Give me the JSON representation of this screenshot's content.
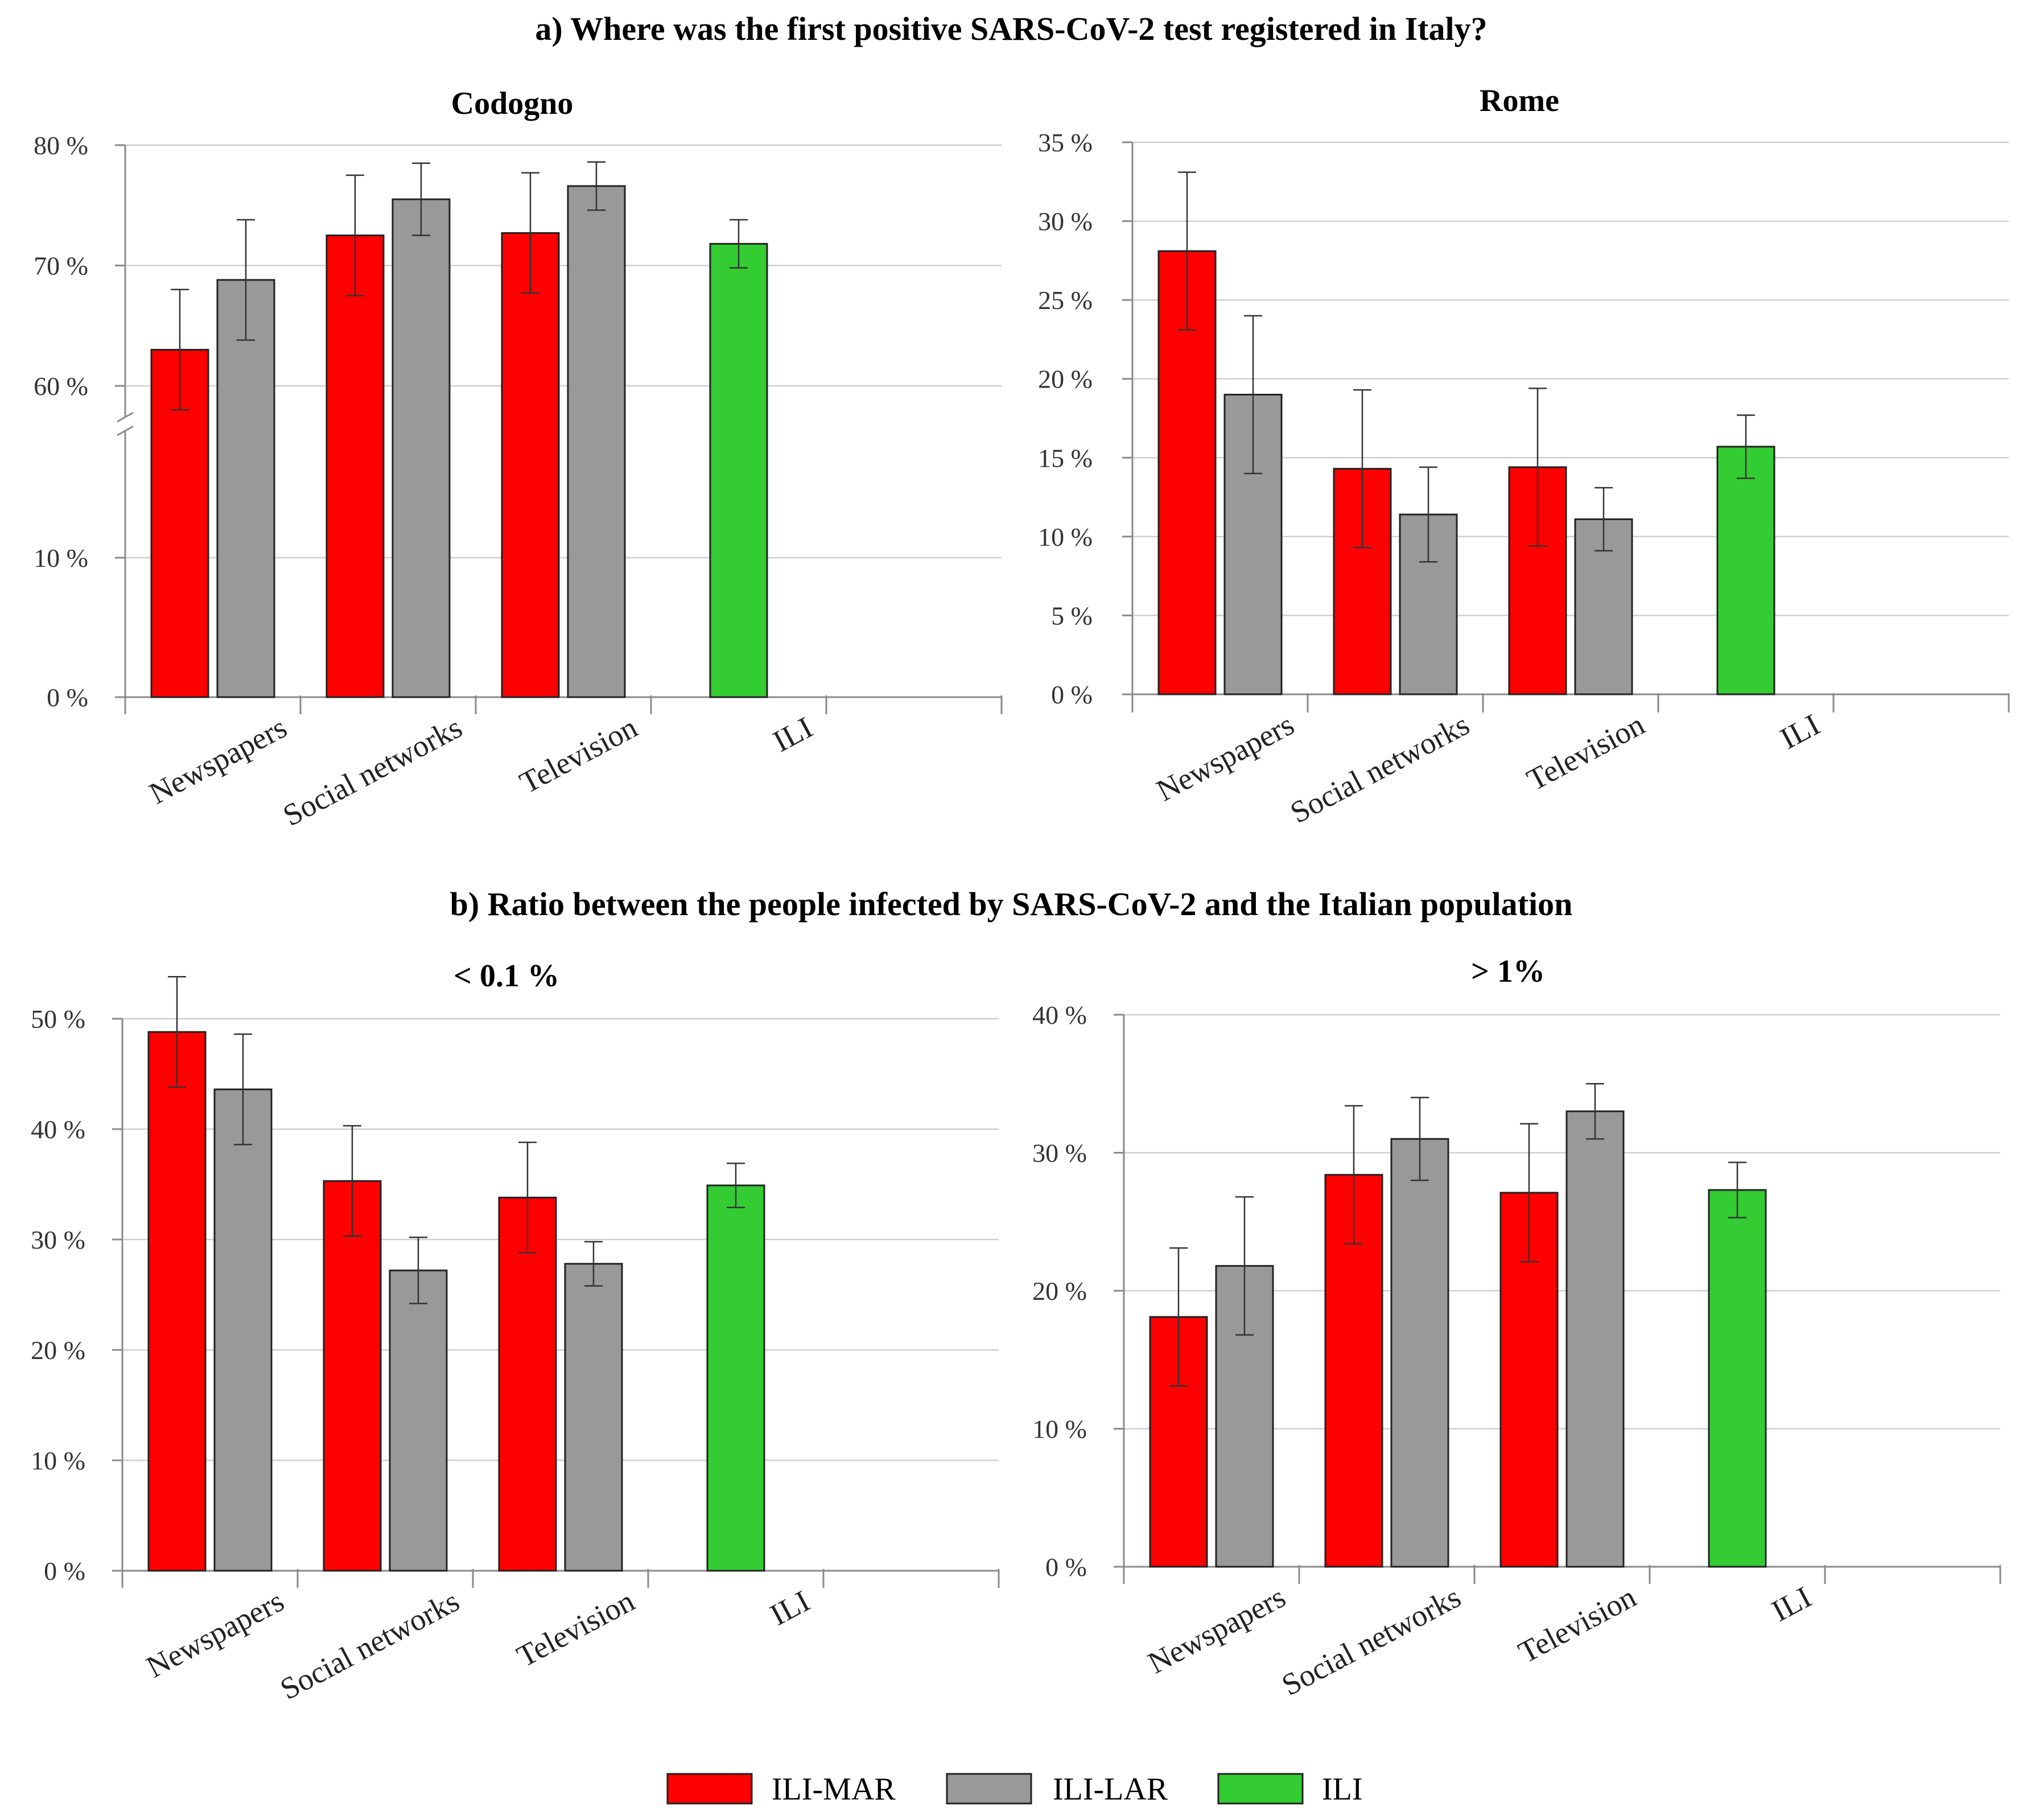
{
  "section_a_title": "a) Where was the first positive SARS-CoV-2 test registered in Italy?",
  "section_b_title": "b) Ratio between the people infected by SARS-CoV-2 and the Italian population",
  "colors": {
    "ILI-MAR": "#ff0000",
    "ILI-LAR": "#999999",
    "ILI": "#33cc33"
  },
  "legend": [
    "ILI-MAR",
    "ILI-LAR",
    "ILI"
  ],
  "chart_data": [
    {
      "type": "bar",
      "title": "Codogno",
      "categories": [
        "Newspapers",
        "Social networks",
        "Television",
        "ILI"
      ],
      "y_ticks": [
        "0 %",
        "10 %",
        "60 %",
        "70 %",
        "80 %"
      ],
      "axis_break": true,
      "series": [
        {
          "name": "ILI-MAR",
          "values": [
            63,
            72.5,
            72.7,
            null
          ],
          "err_low": [
            58,
            67.5,
            67.7,
            null
          ],
          "err_high": [
            68,
            77.5,
            77.7,
            null
          ]
        },
        {
          "name": "ILI-LAR",
          "values": [
            68.8,
            75.5,
            76.6,
            null
          ],
          "err_low": [
            63.8,
            72.5,
            74.6,
            null
          ],
          "err_high": [
            73.8,
            78.5,
            78.6,
            null
          ]
        },
        {
          "name": "ILI",
          "values": [
            null,
            null,
            null,
            71.8
          ],
          "err_low": [
            null,
            null,
            null,
            69.8
          ],
          "err_high": [
            null,
            null,
            null,
            73.8
          ]
        }
      ]
    },
    {
      "type": "bar",
      "title": "Rome",
      "categories": [
        "Newspapers",
        "Social networks",
        "Television",
        "ILI"
      ],
      "y_ticks": [
        "0 %",
        "5 %",
        "10 %",
        "15 %",
        "20 %",
        "25 %",
        "30 %",
        "35 %"
      ],
      "ylim": [
        0,
        35
      ],
      "series": [
        {
          "name": "ILI-MAR",
          "values": [
            28.1,
            14.3,
            14.4,
            null
          ],
          "err_low": [
            23.1,
            9.3,
            9.4,
            null
          ],
          "err_high": [
            33.1,
            19.3,
            19.4,
            null
          ]
        },
        {
          "name": "ILI-LAR",
          "values": [
            19,
            11.4,
            11.1,
            null
          ],
          "err_low": [
            14,
            8.4,
            9.1,
            null
          ],
          "err_high": [
            24,
            14.4,
            13.1,
            null
          ]
        },
        {
          "name": "ILI",
          "values": [
            null,
            null,
            null,
            15.7
          ],
          "err_low": [
            null,
            null,
            null,
            13.7
          ],
          "err_high": [
            null,
            null,
            null,
            17.7
          ]
        }
      ]
    },
    {
      "type": "bar",
      "title": "< 0.1 %",
      "categories": [
        "Newspapers",
        "Social networks",
        "Television",
        "ILI"
      ],
      "y_ticks": [
        "0 %",
        "10 %",
        "20 %",
        "30 %",
        "40 %",
        "50 %"
      ],
      "ylim": [
        0,
        50
      ],
      "series": [
        {
          "name": "ILI-MAR",
          "values": [
            48.8,
            35.3,
            33.8,
            null
          ],
          "err_low": [
            43.8,
            30.3,
            28.8,
            null
          ],
          "err_high": [
            53.8,
            40.3,
            38.8,
            null
          ]
        },
        {
          "name": "ILI-LAR",
          "values": [
            43.6,
            27.2,
            27.8,
            null
          ],
          "err_low": [
            38.6,
            24.2,
            25.8,
            null
          ],
          "err_high": [
            48.6,
            30.2,
            29.8,
            null
          ]
        },
        {
          "name": "ILI",
          "values": [
            null,
            null,
            null,
            34.9
          ],
          "err_low": [
            null,
            null,
            null,
            32.9
          ],
          "err_high": [
            null,
            null,
            null,
            36.9
          ]
        }
      ]
    },
    {
      "type": "bar",
      "title": "> 1%",
      "categories": [
        "Newspapers",
        "Social networks",
        "Television",
        "ILI"
      ],
      "y_ticks": [
        "0 %",
        "10 %",
        "20 %",
        "30 %",
        "40 %"
      ],
      "ylim": [
        0,
        40
      ],
      "series": [
        {
          "name": "ILI-MAR",
          "values": [
            18.1,
            28.4,
            27.1,
            null
          ],
          "err_low": [
            13.1,
            23.4,
            22.1,
            null
          ],
          "err_high": [
            23.1,
            33.4,
            32.1,
            null
          ]
        },
        {
          "name": "ILI-LAR",
          "values": [
            21.8,
            31,
            33,
            null
          ],
          "err_low": [
            16.8,
            28,
            31,
            null
          ],
          "err_high": [
            26.8,
            34,
            35,
            null
          ]
        },
        {
          "name": "ILI",
          "values": [
            null,
            null,
            null,
            27.3
          ],
          "err_low": [
            null,
            null,
            null,
            25.3
          ],
          "err_high": [
            null,
            null,
            null,
            29.3
          ]
        }
      ]
    }
  ]
}
